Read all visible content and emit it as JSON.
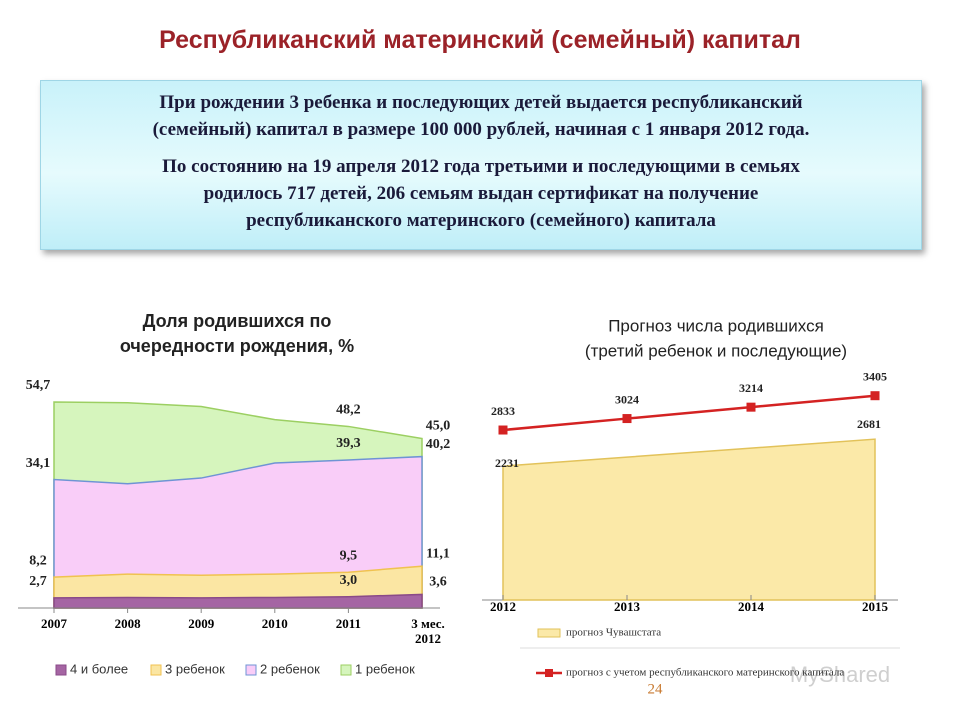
{
  "slide_title": "Республиканский материнский (семейный) капитал",
  "text_box": {
    "paragraphs": [
      [
        "При рождении 3 ребенка и последующих детей выдается республиканский",
        "(семейный) капитал в размере 100 000 рублей, начиная с 1 января 2012 года."
      ],
      [
        "По состоянию на 19 апреля 2012 года третьими и последующими в  семьях",
        "родилось 717 детей, 206 семьям выдан сертификат на получение",
        "республиканского материнского (семейного) капитала"
      ]
    ]
  },
  "page_number": "24",
  "watermark": "MyShared",
  "chart_data": [
    {
      "type": "area",
      "title": [
        "Доля родившихся по",
        "очередности рождения, %"
      ],
      "categories": [
        "2007",
        "2008",
        "2009",
        "2010",
        "2011",
        "3 мес. 2012"
      ],
      "ylim": [
        0,
        60
      ],
      "series": [
        {
          "name": "1 ребенок",
          "color": "#d6f5bd",
          "edge": "#9ccf62",
          "values": [
            54.7,
            54.5,
            53.5,
            50.0,
            48.2,
            45.0
          ],
          "value_labels": [
            "54,7",
            null,
            null,
            null,
            "48,2",
            "45,0"
          ]
        },
        {
          "name": "2 ребенок",
          "color": "#f9cdf8",
          "edge": "#6f94d4",
          "values": [
            34.1,
            33.0,
            34.5,
            38.5,
            39.3,
            40.2
          ],
          "value_labels": [
            "34,1",
            null,
            null,
            null,
            "39,3",
            "40,2"
          ]
        },
        {
          "name": "3 ребенок",
          "color": "#fbe6a3",
          "edge": "#f0c250",
          "values": [
            8.2,
            9.0,
            8.7,
            9.0,
            9.5,
            11.1
          ],
          "value_labels": [
            "8,2",
            null,
            null,
            null,
            "9,5",
            "11,1"
          ]
        },
        {
          "name": "4 и более",
          "color": "#a565a3",
          "edge": "#8a4a88",
          "values": [
            2.7,
            2.8,
            2.7,
            2.8,
            3.0,
            3.6
          ],
          "value_labels": [
            "2,7",
            null,
            null,
            null,
            "3,0",
            "3,6"
          ]
        }
      ]
    },
    {
      "type": "line",
      "title": [
        "Прогноз числа родившихся",
        "(третий ребенок и последующие)"
      ],
      "categories": [
        "2012",
        "2013",
        "2014",
        "2015"
      ],
      "ylim": [
        0,
        4000
      ],
      "series": [
        {
          "name": "прогноз Чувашстата",
          "style": "area",
          "color": "#fbe9a8",
          "edge": "#e2c25a",
          "values": [
            2231,
            2381,
            2531,
            2681
          ],
          "value_labels": [
            "2231",
            null,
            null,
            "2681"
          ]
        },
        {
          "name": "прогноз с учетом республиканского материнского капитала",
          "style": "line",
          "color": "#d42222",
          "values": [
            2833,
            3024,
            3214,
            3405
          ],
          "value_labels": [
            "2833",
            "3024",
            "3214",
            "3405"
          ]
        }
      ]
    }
  ]
}
